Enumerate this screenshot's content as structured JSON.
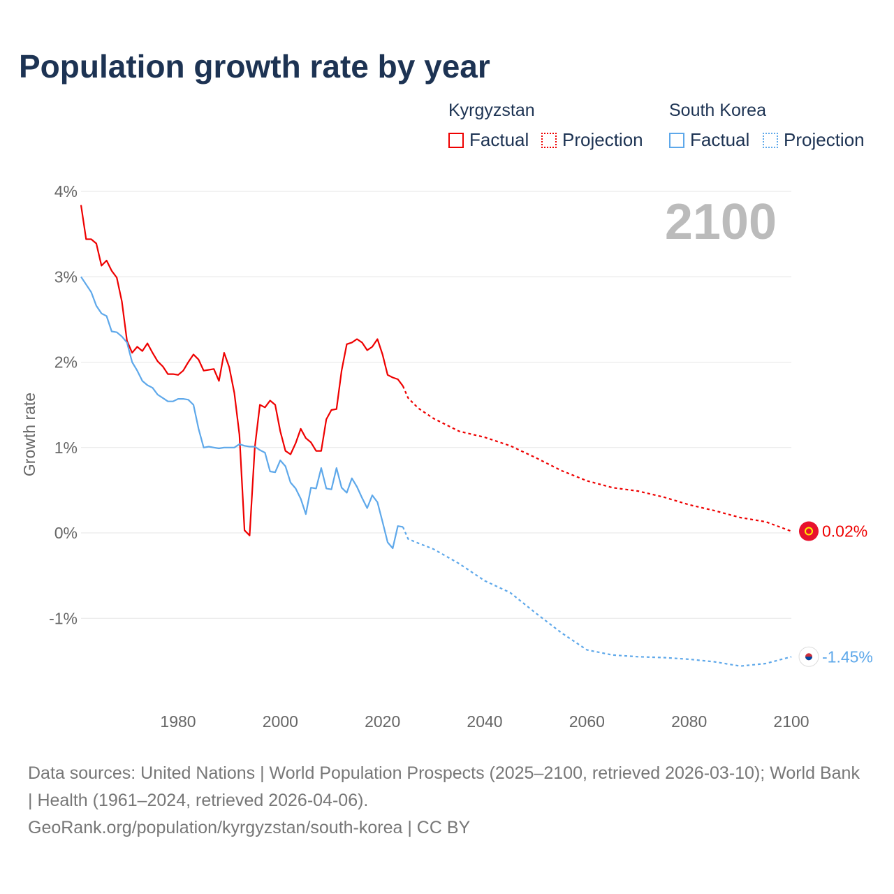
{
  "title": "Population growth rate by year",
  "legend": {
    "k_name": "Kyrgyzstan",
    "s_name": "South Korea",
    "factual": "Factual",
    "projection": "Projection"
  },
  "footer": {
    "line1": "Data sources: United Nations | World Population Prospects (2025–2100, retrieved 2026-03-10); World Bank | Health (1961–2024, retrieved 2026-04-06).",
    "line2": "GeoRank.org/population/kyrgyzstan/south-korea | CC BY"
  },
  "chart_data": {
    "type": "line",
    "title": "Population growth rate by year",
    "ylabel": "Growth rate",
    "year_display": "2100",
    "xlim": [
      1961,
      2100
    ],
    "ylim": [
      -2,
      4
    ],
    "xticks": [
      1980,
      2000,
      2020,
      2040,
      2060,
      2080,
      2100
    ],
    "yticks": [
      {
        "v": 4,
        "label": "4%"
      },
      {
        "v": 3,
        "label": "3%"
      },
      {
        "v": 2,
        "label": "2%"
      },
      {
        "v": 1,
        "label": "1%"
      },
      {
        "v": 0,
        "label": "0%"
      },
      {
        "v": -1,
        "label": "-1%"
      }
    ],
    "series": [
      {
        "name": "Kyrgyzstan",
        "color": "#ee0000",
        "end_label": "0.02%",
        "flag": "kyrgyzstan-flag",
        "factual_start": 1961,
        "factual": [
          3.84,
          3.44,
          3.44,
          3.39,
          3.13,
          3.19,
          3.07,
          2.99,
          2.71,
          2.25,
          2.11,
          2.18,
          2.13,
          2.22,
          2.11,
          2.01,
          1.95,
          1.86,
          1.86,
          1.85,
          1.9,
          2.0,
          2.09,
          2.03,
          1.9,
          1.91,
          1.92,
          1.78,
          2.11,
          1.94,
          1.64,
          1.15,
          0.03,
          -0.03,
          1.0,
          1.5,
          1.47,
          1.55,
          1.5,
          1.19,
          0.96,
          0.92,
          1.05,
          1.22,
          1.11,
          1.06,
          0.96,
          0.96,
          1.33,
          1.44,
          1.45,
          1.9,
          2.21,
          2.23,
          2.27,
          2.23,
          2.14,
          2.18,
          2.27,
          2.09,
          1.85,
          1.82,
          1.8,
          1.72
        ],
        "projection": [
          [
            2024,
            1.72
          ],
          [
            2025,
            1.58
          ],
          [
            2027,
            1.46
          ],
          [
            2030,
            1.34
          ],
          [
            2035,
            1.19
          ],
          [
            2040,
            1.12
          ],
          [
            2045,
            1.02
          ],
          [
            2050,
            0.88
          ],
          [
            2055,
            0.73
          ],
          [
            2060,
            0.61
          ],
          [
            2065,
            0.53
          ],
          [
            2070,
            0.49
          ],
          [
            2075,
            0.42
          ],
          [
            2080,
            0.33
          ],
          [
            2085,
            0.26
          ],
          [
            2090,
            0.18
          ],
          [
            2095,
            0.13
          ],
          [
            2100,
            0.02
          ]
        ]
      },
      {
        "name": "South Korea",
        "color": "#5ea8ea",
        "end_label": "-1.45%",
        "flag": "south-korea-flag",
        "factual_start": 1961,
        "factual": [
          3.0,
          2.91,
          2.82,
          2.66,
          2.57,
          2.54,
          2.36,
          2.35,
          2.3,
          2.23,
          2.0,
          1.9,
          1.78,
          1.73,
          1.7,
          1.62,
          1.58,
          1.54,
          1.54,
          1.57,
          1.57,
          1.56,
          1.5,
          1.22,
          1.0,
          1.01,
          1.0,
          0.99,
          1.0,
          1.0,
          1.0,
          1.04,
          1.02,
          1.01,
          1.01,
          0.97,
          0.94,
          0.72,
          0.71,
          0.85,
          0.78,
          0.59,
          0.52,
          0.4,
          0.22,
          0.53,
          0.52,
          0.76,
          0.52,
          0.51,
          0.76,
          0.53,
          0.47,
          0.64,
          0.54,
          0.41,
          0.29,
          0.44,
          0.36,
          0.13,
          -0.11,
          -0.18,
          0.08,
          0.07
        ],
        "projection": [
          [
            2024,
            0.07
          ],
          [
            2025,
            -0.07
          ],
          [
            2027,
            -0.12
          ],
          [
            2030,
            -0.19
          ],
          [
            2035,
            -0.36
          ],
          [
            2040,
            -0.56
          ],
          [
            2045,
            -0.7
          ],
          [
            2050,
            -0.94
          ],
          [
            2055,
            -1.17
          ],
          [
            2060,
            -1.37
          ],
          [
            2065,
            -1.43
          ],
          [
            2070,
            -1.45
          ],
          [
            2075,
            -1.46
          ],
          [
            2080,
            -1.48
          ],
          [
            2085,
            -1.51
          ],
          [
            2090,
            -1.56
          ],
          [
            2095,
            -1.53
          ],
          [
            2100,
            -1.45
          ]
        ]
      }
    ]
  }
}
